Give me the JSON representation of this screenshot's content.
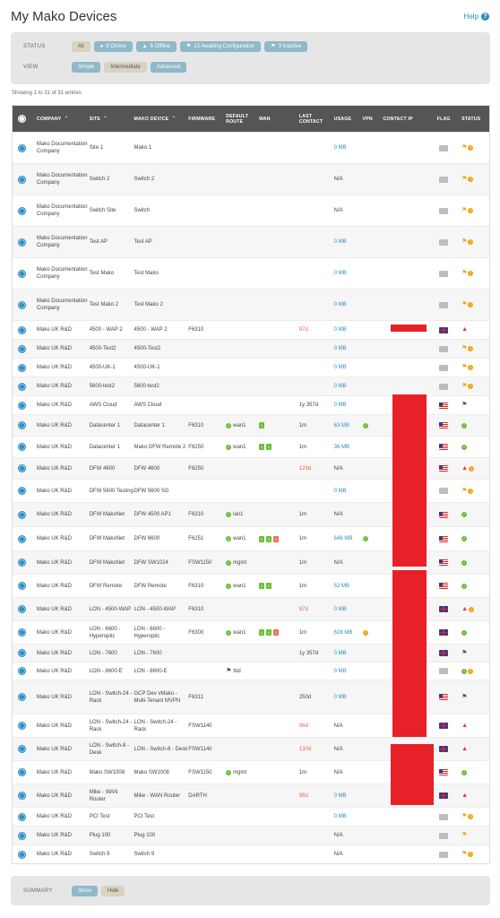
{
  "page": {
    "title": "My Mako Devices",
    "help_label": "Help"
  },
  "filters": {
    "status_label": "STATUS",
    "view_label": "VIEW",
    "status_chips": [
      {
        "label": "All",
        "icon": "",
        "active": true
      },
      {
        "label": "9 Online",
        "icon": "online-icon",
        "active": false
      },
      {
        "label": "6 Offline",
        "icon": "warning-icon",
        "active": false
      },
      {
        "label": "13 Awaiting Configuration",
        "icon": "flag-icon",
        "active": false
      },
      {
        "label": "3 Inactive",
        "icon": "flag-icon",
        "active": false
      }
    ],
    "view_chips": [
      {
        "label": "Simple",
        "active": false
      },
      {
        "label": "Intermediate",
        "active": true
      },
      {
        "label": "Advanced",
        "active": false
      }
    ]
  },
  "entries_text": "Showing 1 to 31 of 31 entries",
  "table": {
    "headers": [
      "COMPANY",
      "SITE",
      "MAKO DEVICE",
      "FIRMWARE",
      "DEFAULT ROUTE",
      "WAN",
      "LAST CONTACT",
      "USAGE",
      "VPN",
      "CONTACT IP",
      "FLAG",
      "STATUS"
    ],
    "rows": [
      {
        "company": "Mako Documentation Company",
        "site": "Site 1",
        "device": "Mako 1",
        "firmware": "",
        "route": "",
        "wan": [],
        "last": "",
        "last_late": false,
        "usage": "0 MB",
        "usage_link": true,
        "vpn": "",
        "flag": "none",
        "status": [
          "flag",
          "dot"
        ]
      },
      {
        "company": "Mako Documentation Company",
        "site": "Switch 2",
        "device": "Switch 2",
        "firmware": "",
        "route": "",
        "wan": [],
        "last": "",
        "last_late": false,
        "usage": "N/A",
        "usage_link": false,
        "vpn": "",
        "flag": "none",
        "status": [
          "flag",
          "dot"
        ]
      },
      {
        "company": "Mako Documentation Company",
        "site": "Switch Site",
        "device": "Switch",
        "firmware": "",
        "route": "",
        "wan": [],
        "last": "",
        "last_late": false,
        "usage": "N/A",
        "usage_link": false,
        "vpn": "",
        "flag": "none",
        "status": [
          "flag",
          "dot"
        ]
      },
      {
        "company": "Mako Documentation Company",
        "site": "Test AP",
        "device": "Test AP",
        "firmware": "",
        "route": "",
        "wan": [],
        "last": "",
        "last_late": false,
        "usage": "0 MB",
        "usage_link": true,
        "vpn": "",
        "flag": "none",
        "status": [
          "flag",
          "dot"
        ]
      },
      {
        "company": "Mako Documentation Company",
        "site": "Test Mako",
        "device": "Test Mako",
        "firmware": "",
        "route": "",
        "wan": [],
        "last": "",
        "last_late": false,
        "usage": "0 MB",
        "usage_link": true,
        "vpn": "",
        "flag": "none",
        "status": [
          "flag",
          "dot"
        ]
      },
      {
        "company": "Mako Documentation Company",
        "site": "Test Mako 2",
        "device": "Test Mako 2",
        "firmware": "",
        "route": "",
        "wan": [],
        "last": "",
        "last_late": false,
        "usage": "0 MB",
        "usage_link": true,
        "vpn": "",
        "flag": "none",
        "status": [
          "flag",
          "dot"
        ]
      },
      {
        "company": "Mako UK R&D",
        "site": "4500 - WAP 2",
        "device": "4500 - WAP 2",
        "firmware": "F6310",
        "route": "",
        "wan": [],
        "last": "97d",
        "last_late": true,
        "usage": "0 MB",
        "usage_link": true,
        "vpn": "",
        "flag": "uk",
        "status": [
          "warn"
        ]
      },
      {
        "company": "Mako UK R&D",
        "site": "4500-Test2",
        "device": "4500-Test2",
        "firmware": "",
        "route": "",
        "wan": [],
        "last": "",
        "last_late": false,
        "usage": "0 MB",
        "usage_link": true,
        "vpn": "",
        "flag": "none",
        "status": [
          "flag",
          "dot"
        ]
      },
      {
        "company": "Mako UK R&D",
        "site": "4500-UK-1",
        "device": "4500-UK-1",
        "firmware": "",
        "route": "",
        "wan": [],
        "last": "",
        "last_late": false,
        "usage": "0 MB",
        "usage_link": true,
        "vpn": "",
        "flag": "none",
        "status": [
          "flag",
          "dot"
        ]
      },
      {
        "company": "Mako UK R&D",
        "site": "5600-test2",
        "device": "5600-test2",
        "firmware": "",
        "route": "",
        "wan": [],
        "last": "",
        "last_late": false,
        "usage": "0 MB",
        "usage_link": true,
        "vpn": "",
        "flag": "none",
        "status": [
          "flag",
          "dot"
        ]
      },
      {
        "company": "Mako UK R&D",
        "site": "AWS Cloud",
        "device": "AWS Cloud",
        "firmware": "",
        "route": "",
        "wan": [],
        "last": "1y 357d",
        "last_late": false,
        "usage": "0 MB",
        "usage_link": true,
        "vpn": "",
        "flag": "us",
        "status": [
          "gray"
        ]
      },
      {
        "company": "Mako UK R&D",
        "site": "Datacenter 1",
        "device": "Datacenter 1",
        "firmware": "F6310",
        "route": "wan1",
        "wan": [
          "1"
        ],
        "last": "1m",
        "last_late": false,
        "usage": "63 MB",
        "usage_link": true,
        "vpn": "ok",
        "flag": "us",
        "status": [
          "ok"
        ]
      },
      {
        "company": "Mako UK R&D",
        "site": "Datacenter 1",
        "device": "Mako DFW Remote 2",
        "firmware": "F6250",
        "route": "wan1",
        "wan": [
          "1",
          "1"
        ],
        "last": "1m",
        "last_late": false,
        "usage": "36 MB",
        "usage_link": true,
        "vpn": "",
        "flag": "us",
        "status": [
          "ok"
        ]
      },
      {
        "company": "Mako UK R&D",
        "site": "DFW 4600",
        "device": "DFW 4600",
        "firmware": "F6250",
        "route": "",
        "wan": [],
        "last": "129d",
        "last_late": true,
        "usage": "N/A",
        "usage_link": false,
        "vpn": "",
        "flag": "us",
        "status": [
          "warn",
          "dot"
        ]
      },
      {
        "company": "Mako UK R&D",
        "site": "DFW 5600 Testing",
        "device": "DFW 5600 SG",
        "firmware": "",
        "route": "",
        "wan": [],
        "last": "",
        "last_late": false,
        "usage": "0 MB",
        "usage_link": true,
        "vpn": "",
        "flag": "none",
        "status": [
          "flag",
          "dot"
        ]
      },
      {
        "company": "Mako UK R&D",
        "site": "DFW MakoNet",
        "device": "DFW 4500 AP1",
        "firmware": "F6310",
        "route": "lan1",
        "wan": [],
        "last": "1m",
        "last_late": false,
        "usage": "N/A",
        "usage_link": false,
        "vpn": "",
        "flag": "us",
        "status": [
          "ok"
        ]
      },
      {
        "company": "Mako UK R&D",
        "site": "DFW MakoNet",
        "device": "DFW 6600",
        "firmware": "F6251",
        "route": "wan1",
        "wan": [
          "1",
          "1",
          "2"
        ],
        "last": "1m",
        "last_late": false,
        "usage": "646 MB",
        "usage_link": true,
        "vpn": "ok",
        "flag": "us",
        "status": [
          "ok"
        ]
      },
      {
        "company": "Mako UK R&D",
        "site": "DFW MakoNet",
        "device": "DFW SW1024",
        "firmware": "FSW1150",
        "route": "mgmt",
        "wan": [],
        "last": "1m",
        "last_late": false,
        "usage": "N/A",
        "usage_link": false,
        "vpn": "",
        "flag": "us",
        "status": [
          "ok"
        ]
      },
      {
        "company": "Mako UK R&D",
        "site": "DFW Remote",
        "device": "DFW Remote",
        "firmware": "F6310",
        "route": "wan1",
        "wan": [
          "1",
          "1"
        ],
        "last": "1m",
        "last_late": false,
        "usage": "52 MB",
        "usage_link": true,
        "vpn": "",
        "flag": "us",
        "status": [
          "ok"
        ]
      },
      {
        "company": "Mako UK R&D",
        "site": "LON - 4500-WAP",
        "device": "LON - 4500-WAP",
        "firmware": "F6310",
        "route": "",
        "wan": [],
        "last": "97d",
        "last_late": true,
        "usage": "0 MB",
        "usage_link": true,
        "vpn": "",
        "flag": "uk",
        "status": [
          "warn",
          "dot"
        ]
      },
      {
        "company": "Mako UK R&D",
        "site": "LON - 6600 - Hyperoptic",
        "device": "LON - 6600 - Hyperoptic",
        "firmware": "F6300",
        "route": "wan1",
        "wan": [
          "1",
          "1",
          "2"
        ],
        "last": "1m",
        "last_late": false,
        "usage": "628 MB",
        "usage_link": true,
        "vpn": "warn",
        "flag": "uk",
        "status": [
          "ok"
        ]
      },
      {
        "company": "Mako UK R&D",
        "site": "LON - 7600",
        "device": "LON - 7600",
        "firmware": "",
        "route": "",
        "wan": [],
        "last": "1y 357d",
        "last_late": false,
        "usage": "0 MB",
        "usage_link": true,
        "vpn": "",
        "flag": "uk",
        "status": [
          "gray"
        ]
      },
      {
        "company": "Mako UK R&D",
        "site": "LON - 8600-E",
        "device": "LON - 8600-E",
        "firmware": "",
        "route": "tbd",
        "wan": [],
        "last": "",
        "last_late": false,
        "usage": "0 MB",
        "usage_link": true,
        "vpn": "",
        "flag": "none",
        "status": [
          "ok",
          "dot"
        ]
      },
      {
        "company": "Mako UK R&D",
        "site": "LON - Switch-24 - Rack",
        "device": "GCP Dev vMako - Multi-Tenant MVPN",
        "firmware": "F6311",
        "route": "",
        "wan": [],
        "last": "250d",
        "last_late": false,
        "usage": "0 MB",
        "usage_link": true,
        "vpn": "",
        "flag": "us",
        "status": [
          "gray"
        ]
      },
      {
        "company": "Mako UK R&D",
        "site": "LON - Switch-24 - Rack",
        "device": "LON - Switch-24 - Rack",
        "firmware": "FSW1140",
        "route": "",
        "wan": [],
        "last": "96d",
        "last_late": true,
        "usage": "N/A",
        "usage_link": false,
        "vpn": "",
        "flag": "uk",
        "status": [
          "warn"
        ]
      },
      {
        "company": "Mako UK R&D",
        "site": "LON - Switch-8 - Desk",
        "device": "LON - Switch-8 - Desk",
        "firmware": "FSW1140",
        "route": "",
        "wan": [],
        "last": "130d",
        "last_late": true,
        "usage": "N/A",
        "usage_link": false,
        "vpn": "",
        "flag": "uk",
        "status": [
          "warn"
        ]
      },
      {
        "company": "Mako UK R&D",
        "site": "Mako SW1008",
        "device": "Mako SW1008",
        "firmware": "FSW1150",
        "route": "mgmt",
        "wan": [],
        "last": "1m",
        "last_late": false,
        "usage": "N/A",
        "usage_link": false,
        "vpn": "",
        "flag": "us",
        "status": [
          "ok"
        ]
      },
      {
        "company": "Mako UK R&D",
        "site": "Mike - WAN Router",
        "device": "Mike - WAN Router",
        "firmware": "DARTH",
        "route": "",
        "wan": [],
        "last": "96d",
        "last_late": true,
        "usage": "0 MB",
        "usage_link": true,
        "vpn": "",
        "flag": "uk",
        "status": [
          "warn"
        ]
      },
      {
        "company": "Mako UK R&D",
        "site": "PCI Test",
        "device": "PCI Test",
        "firmware": "",
        "route": "",
        "wan": [],
        "last": "",
        "last_late": false,
        "usage": "0 MB",
        "usage_link": true,
        "vpn": "",
        "flag": "none",
        "status": [
          "flag",
          "dot"
        ]
      },
      {
        "company": "Mako UK R&D",
        "site": "Plug 100",
        "device": "Plug 100",
        "firmware": "",
        "route": "",
        "wan": [],
        "last": "",
        "last_late": false,
        "usage": "N/A",
        "usage_link": false,
        "vpn": "",
        "flag": "none",
        "status": [
          "flag"
        ]
      },
      {
        "company": "Mako UK R&D",
        "site": "Switch 9",
        "device": "Switch 9",
        "firmware": "",
        "route": "",
        "wan": [],
        "last": "",
        "last_late": false,
        "usage": "N/A",
        "usage_link": false,
        "vpn": "",
        "flag": "none",
        "status": [
          "flag",
          "dot"
        ]
      }
    ]
  },
  "summary": {
    "label": "SUMMARY",
    "show_label": "Show",
    "hide_label": "Hide"
  },
  "colors": {
    "accent": "#2a8fc4",
    "ok": "#6cbf3a",
    "warn": "#f2a51b",
    "error": "#e53935",
    "redaction": "#e82027"
  }
}
